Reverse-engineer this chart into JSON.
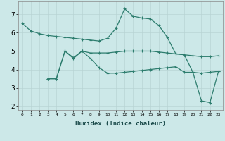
{
  "xlabel": "Humidex (Indice chaleur)",
  "x_labels": [
    "0",
    "1",
    "2",
    "3",
    "4",
    "5",
    "6",
    "7",
    "8",
    "9",
    "10",
    "11",
    "12",
    "13",
    "14",
    "15",
    "16",
    "17",
    "18",
    "19",
    "20",
    "21",
    "22",
    "23"
  ],
  "line1_x": [
    0,
    1,
    2,
    3,
    4,
    5,
    6,
    7,
    8,
    9,
    10,
    11,
    12,
    13,
    14,
    15,
    16,
    17,
    18,
    19,
    20,
    21,
    22,
    23
  ],
  "line1_y": [
    6.5,
    6.1,
    5.95,
    5.85,
    5.8,
    5.75,
    5.7,
    5.65,
    5.6,
    5.55,
    5.7,
    6.25,
    7.3,
    6.9,
    6.8,
    6.75,
    6.4,
    5.75,
    4.85,
    4.8,
    3.85,
    2.3,
    2.2,
    3.9
  ],
  "line2_x": [
    3,
    4,
    5,
    6,
    7,
    8,
    9,
    10,
    11,
    12,
    13,
    14,
    15,
    16,
    17,
    18,
    19,
    20,
    21,
    22,
    23
  ],
  "line2_y": [
    3.5,
    3.5,
    5.0,
    4.6,
    5.0,
    4.6,
    4.1,
    3.8,
    3.8,
    3.85,
    3.9,
    3.95,
    4.0,
    4.05,
    4.1,
    4.15,
    3.85,
    3.85,
    3.8,
    3.85,
    3.9
  ],
  "line3_x": [
    3,
    4,
    5,
    6,
    7,
    8,
    9,
    10,
    11,
    12,
    13,
    14,
    15,
    16,
    17,
    18,
    19,
    20,
    21,
    22,
    23
  ],
  "line3_y": [
    3.5,
    3.5,
    5.0,
    4.65,
    5.0,
    4.9,
    4.9,
    4.9,
    4.95,
    5.0,
    5.0,
    5.0,
    5.0,
    4.95,
    4.9,
    4.85,
    4.8,
    4.75,
    4.7,
    4.7,
    4.75
  ],
  "color": "#2d7d6e",
  "bg_color": "#cce8e8",
  "grid_color": "#b8d4d4",
  "ylim": [
    1.8,
    7.7
  ],
  "yticks": [
    2,
    3,
    4,
    5,
    6,
    7
  ]
}
